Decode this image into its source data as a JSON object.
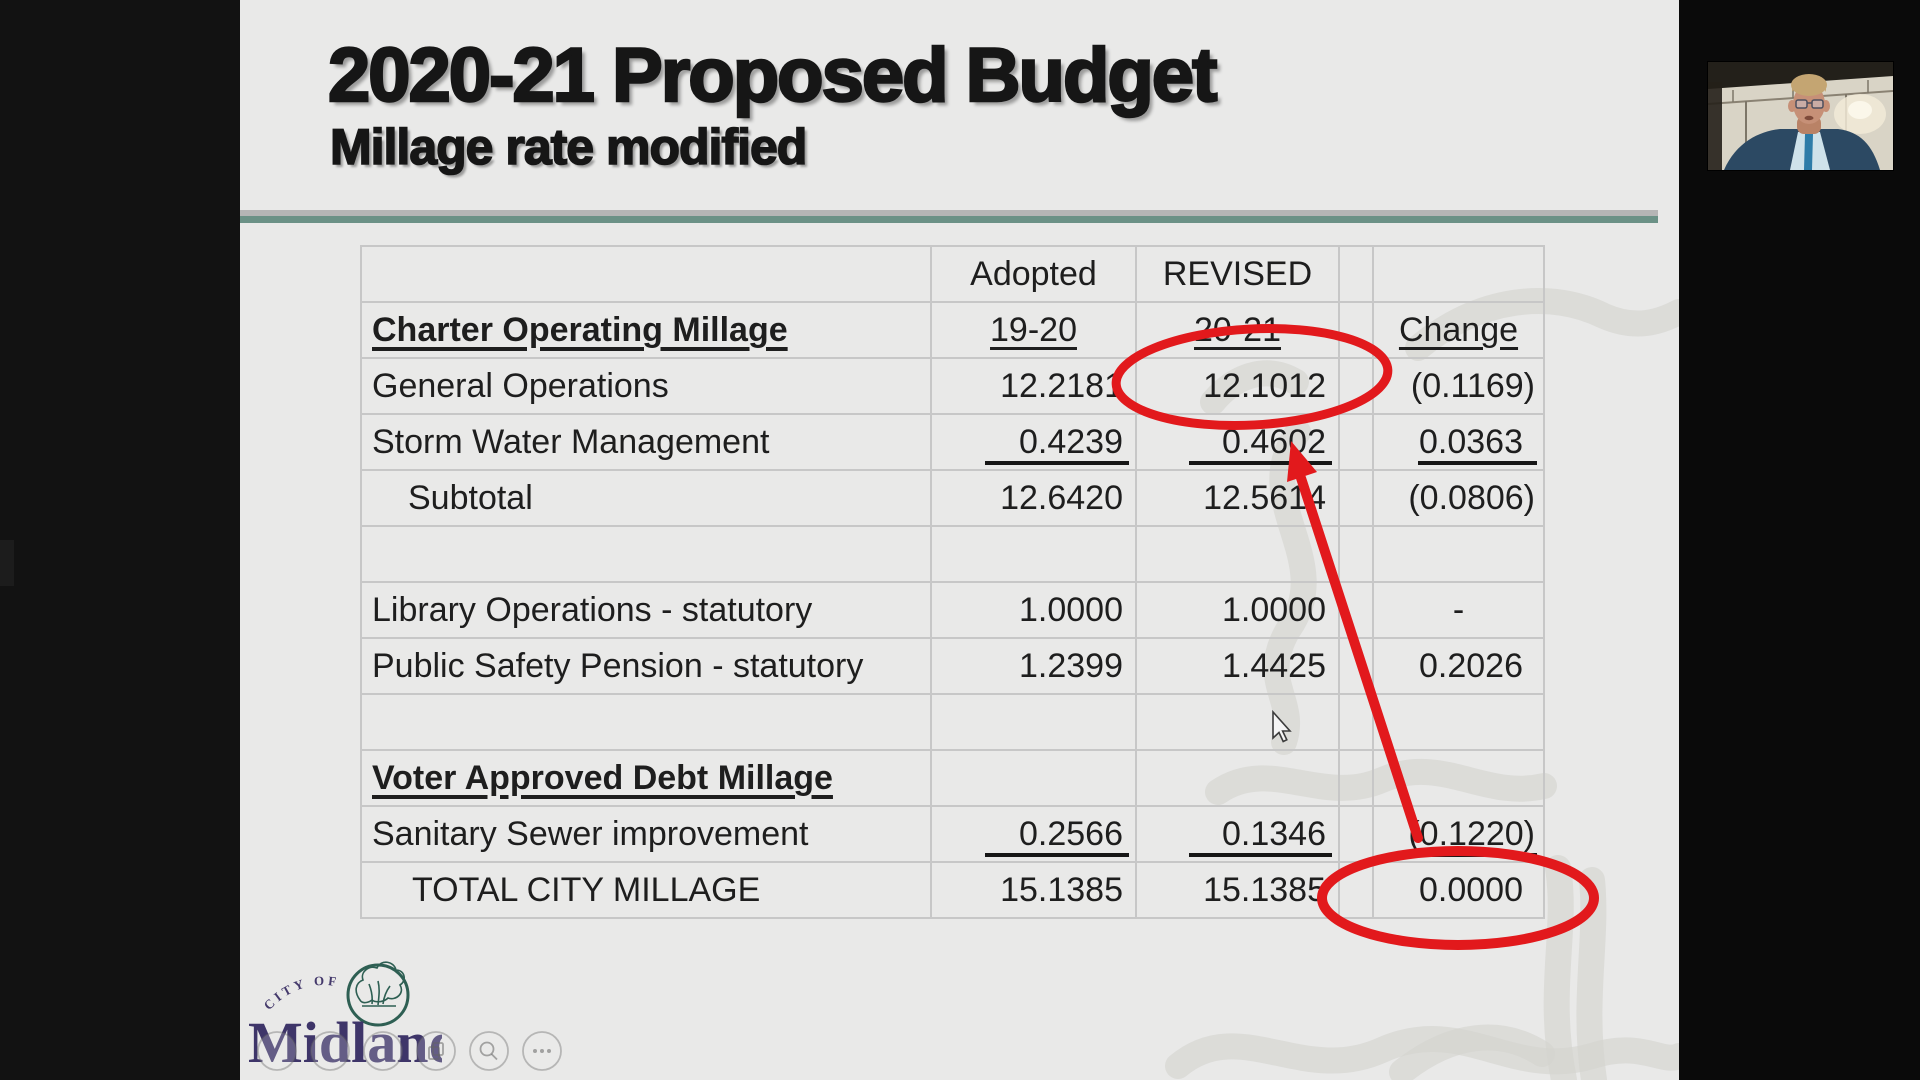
{
  "slide": {
    "title": "2020-21 Proposed Budget",
    "subtitle": "Millage rate modified",
    "divider_colors": {
      "gray": "#b5b5b5",
      "green": "#6b9186"
    },
    "table": {
      "columns": [
        "label",
        "adopted",
        "revised",
        "spacer",
        "change"
      ],
      "rows": [
        {
          "cells": [
            "",
            {
              "t": "Adopted",
              "cls": "ctr"
            },
            {
              "t": "REVISED",
              "cls": "ctr"
            },
            "",
            ""
          ]
        },
        {
          "cells": [
            {
              "t": "Charter Operating Millage",
              "cls": "b u"
            },
            {
              "t": "19-20",
              "cls": "ctr u"
            },
            {
              "t": "20-21",
              "cls": "ctr u"
            },
            "",
            {
              "t": "Change",
              "cls": "ctr u"
            }
          ]
        },
        {
          "cells": [
            "General Operations",
            "12.2181",
            "12.1012",
            "",
            "(0.1169)"
          ]
        },
        {
          "cells": [
            "Storm Water Management",
            {
              "t": "0.4239",
              "cls": "rule"
            },
            {
              "t": "0.4602",
              "cls": "rule"
            },
            "",
            {
              "t": "0.0363",
              "cls": "rule"
            }
          ]
        },
        {
          "cells": [
            {
              "t": "Subtotal",
              "cls": "ind"
            },
            "12.6420",
            "12.5614",
            "",
            "(0.0806)"
          ]
        },
        {
          "cells": [
            "",
            "",
            "",
            "",
            ""
          ]
        },
        {
          "cells": [
            "Library Operations - statutory",
            "1.0000",
            "1.0000",
            "",
            {
              "t": "-",
              "cls": "ctr"
            }
          ]
        },
        {
          "cells": [
            "Public Safety Pension - statutory",
            "1.2399",
            "1.4425",
            "",
            "0.2026"
          ]
        },
        {
          "cells": [
            "",
            "",
            "",
            "",
            ""
          ]
        },
        {
          "cells": [
            {
              "t": "Voter Approved Debt Millage",
              "cls": "b u"
            },
            "",
            "",
            "",
            ""
          ]
        },
        {
          "cells": [
            "Sanitary Sewer improvement",
            {
              "t": "0.2566",
              "cls": "rule"
            },
            {
              "t": "0.1346",
              "cls": "rule"
            },
            "",
            {
              "t": "(0.1220)",
              "cls": "rule"
            }
          ]
        },
        {
          "cells": [
            {
              "t": "TOTAL CITY MILLAGE",
              "cls": "ind2"
            },
            "15.1385",
            "15.1385",
            "",
            "0.0000"
          ]
        }
      ]
    },
    "annotations": {
      "red_color": "#e2191c",
      "circled_values": [
        "12.1012",
        "0.0000"
      ],
      "arrow_points_to": "0.4602"
    },
    "logo": {
      "arc_text": "CITY OF",
      "name": "Midland",
      "navy": "#3e3569",
      "green": "#2e5f53"
    },
    "player_controls": {
      "icons": [
        "blank-circle",
        "blank-circle",
        "blank-circle",
        "pages-icon",
        "magnifier-icon",
        "ellipsis-icon"
      ]
    }
  }
}
